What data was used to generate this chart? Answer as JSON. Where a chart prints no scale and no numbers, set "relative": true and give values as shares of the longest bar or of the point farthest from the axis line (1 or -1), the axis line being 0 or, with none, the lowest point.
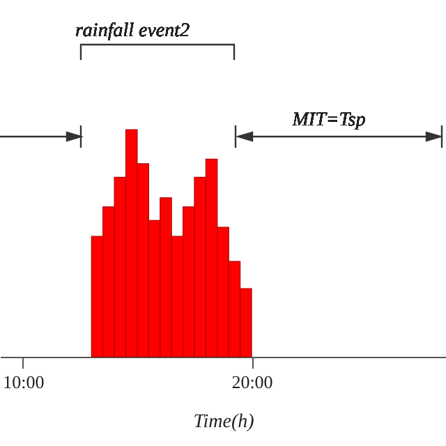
{
  "chart_data": {
    "type": "bar",
    "relative": true,
    "xlabel": "Time(h)",
    "x": [
      13.25,
      13.75,
      14.25,
      14.75,
      15.25,
      15.75,
      16.25,
      16.75,
      17.25,
      17.75,
      18.25,
      18.75,
      19.25,
      19.75
    ],
    "values": [
      0.53,
      0.66,
      0.79,
      1,
      0.85,
      0.6,
      0.7,
      0.53,
      0.66,
      0.79,
      0.87,
      0.57,
      0.42,
      0.3
    ],
    "color": "#ff0000",
    "xlim": [
      9,
      28.5
    ],
    "xticks": [
      {
        "value": 10,
        "label": "10:00"
      },
      {
        "value": 20,
        "label": "20:00"
      }
    ],
    "annotations": [
      "rainfall event2",
      "MIT=Tsp"
    ],
    "grid": false
  }
}
